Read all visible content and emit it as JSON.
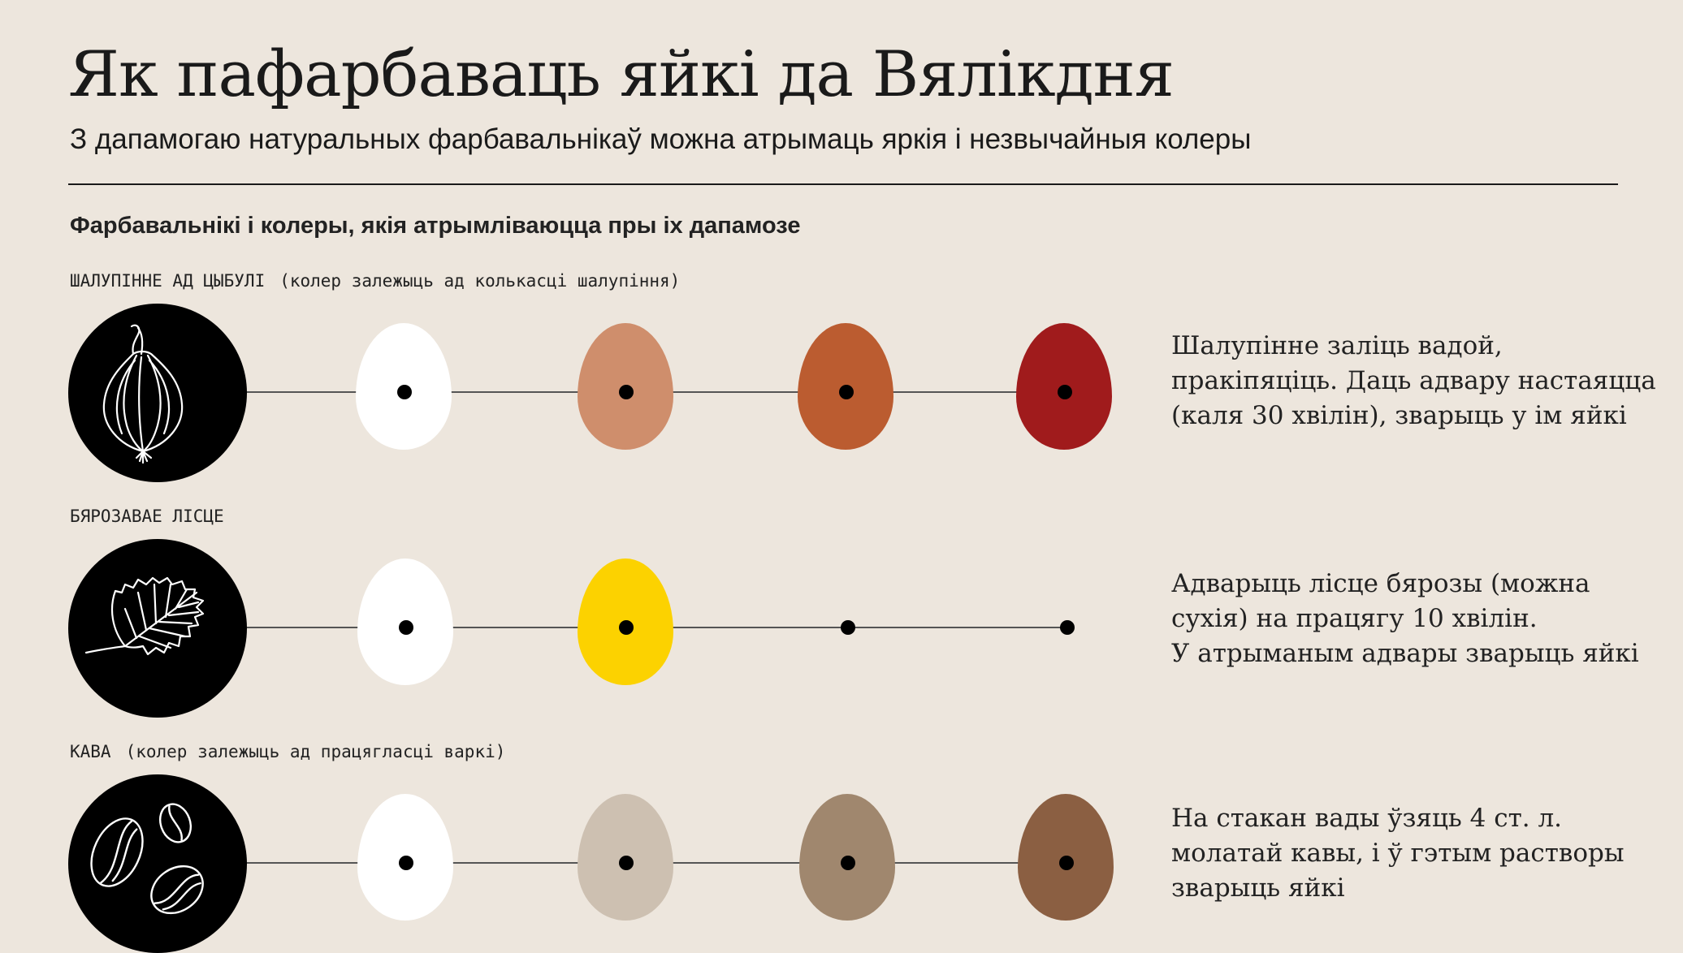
{
  "header": {
    "title": "Як пафарбаваць яйкі да Вялікдня",
    "subtitle": "З дапамогаю натуральных фарбавальнікаў можна атрымаць яркія і незвычайныя колеры"
  },
  "section_title": "Фарбавальнікі і колеры, якія атрымліваюцца пры іх дапамозе",
  "rows": [
    {
      "label": "ШАЛУПІННЕ АД ЦЫБУЛІ",
      "note": "(колер залежыць ад колькасці шалупіння)",
      "icon": "onion-icon",
      "egg_colors": [
        "#ffffff",
        "#cf8e6c",
        "#bb5c30",
        "#a01b1c"
      ],
      "description_lines": [
        "Шалупінне заліць вадой,",
        "пракіпяціць. Даць адвару настаяцца",
        "(каля 30 хвілін), зварыць у ім яйкі"
      ]
    },
    {
      "label": "БЯРОЗАВАЕ ЛІСЦЕ",
      "note": "",
      "icon": "birch-leaf-icon",
      "egg_colors": [
        "#ffffff",
        "#fcd200",
        null,
        null
      ],
      "description_lines": [
        "Адварыць лісце бярозы (можна",
        "сухія) на працягу 10 хвілін.",
        "У атрыманым адвары зварыць яйкі"
      ]
    },
    {
      "label": "КАВА",
      "note": "(колер залежыць ад працягласці варкі)",
      "icon": "coffee-beans-icon",
      "egg_colors": [
        "#ffffff",
        "#cdc0b1",
        "#a0876e",
        "#8b5f42"
      ],
      "description_lines": [
        "На стакан вады ўзяць 4 ст. л.",
        "молатай кавы, і ў гэтым растворы",
        "зварыць яйкі"
      ]
    }
  ]
}
